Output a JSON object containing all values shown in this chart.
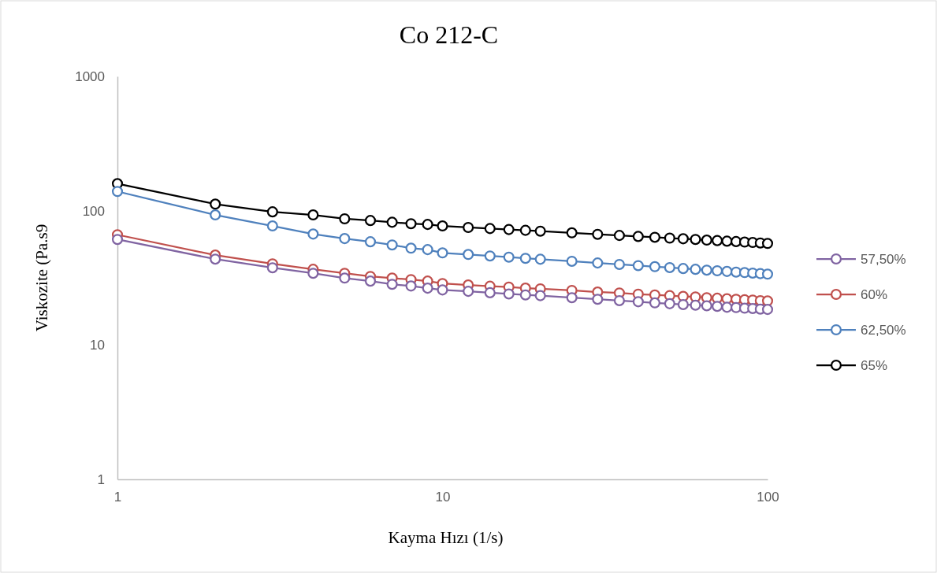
{
  "chart_data": {
    "type": "line",
    "title": "Co 212-C",
    "xlabel": "Kayma Hızı (1/s)",
    "ylabel": "Viskozite (Pa.s9",
    "log": "xy",
    "grid": false,
    "legend": "right",
    "marker": "circle",
    "line_style": "solid",
    "x": [
      1,
      2,
      3,
      4,
      5,
      6,
      7,
      8,
      9,
      10,
      12,
      14,
      16,
      18,
      20,
      25,
      30,
      35,
      40,
      45,
      50,
      55,
      60,
      65,
      70,
      75,
      80,
      85,
      90,
      95,
      100
    ],
    "xlim": [
      1,
      100
    ],
    "xticks": [
      1,
      10,
      100
    ],
    "ylim": [
      1,
      1000
    ],
    "yticks": [
      1,
      10,
      100,
      1000
    ],
    "series": [
      {
        "name": "57,50%",
        "color": "#8064a2",
        "values": [
          61.1,
          43.6,
          37.6,
          34.2,
          31.5,
          29.9,
          28.3,
          27.5,
          26.5,
          25.7,
          25.1,
          24.5,
          24.0,
          23.6,
          23.3,
          22.5,
          21.9,
          21.4,
          21.0,
          20.6,
          20.3,
          20.0,
          19.8,
          19.6,
          19.4,
          19.1,
          19.0,
          18.8,
          18.7,
          18.5,
          18.4
        ]
      },
      {
        "name": "60%",
        "color": "#c0504d",
        "values": [
          66.2,
          46.7,
          40.2,
          36.6,
          34.2,
          32.4,
          31.5,
          30.7,
          29.9,
          28.7,
          28.0,
          27.4,
          27.0,
          26.5,
          26.2,
          25.5,
          24.8,
          24.4,
          23.9,
          23.6,
          23.3,
          23.0,
          22.8,
          22.5,
          22.3,
          22.1,
          21.9,
          21.7,
          21.6,
          21.4,
          21.3
        ]
      },
      {
        "name": "62,50%",
        "color": "#4f81bd",
        "values": [
          139,
          93,
          77,
          67,
          62,
          58.7,
          55.6,
          52.6,
          51.3,
          48.5,
          47.2,
          46.0,
          45.1,
          44.2,
          43.5,
          42.0,
          40.8,
          39.8,
          39.0,
          38.3,
          37.7,
          37.1,
          36.6,
          36.1,
          35.7,
          35.3,
          34.9,
          34.6,
          34.3,
          34.0,
          33.7
        ]
      },
      {
        "name": "65%",
        "color": "#000000",
        "values": [
          159,
          112,
          98,
          93,
          87,
          84.5,
          82,
          80,
          79,
          77,
          75,
          73.6,
          72.4,
          71.4,
          70.4,
          68.4,
          66.7,
          65.4,
          64.3,
          63.4,
          62.5,
          61.8,
          61.1,
          60.4,
          59.9,
          59.3,
          58.9,
          58.4,
          58.0,
          57.5,
          57
        ]
      }
    ]
  }
}
